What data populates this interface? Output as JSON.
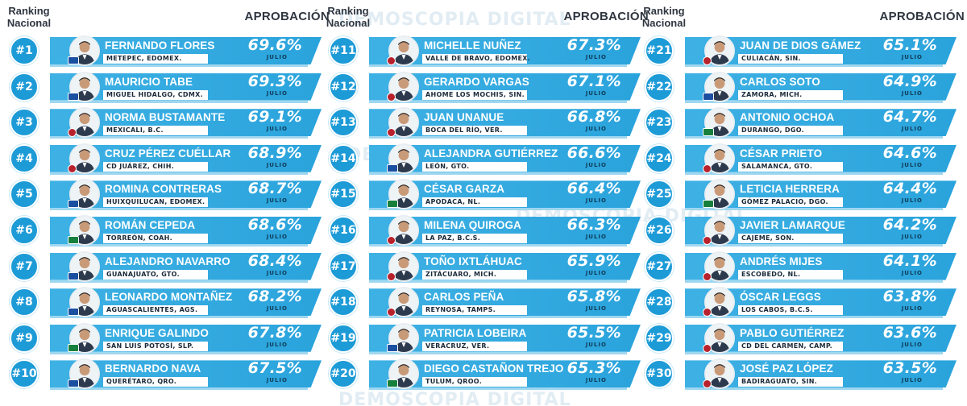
{
  "headers": {
    "ranking_line1": "Ranking",
    "ranking_line2": "Nacional",
    "approval": "APROBACIÓN"
  },
  "watermark": "DEMOSCOPIA DIGITAL",
  "colors": {
    "bar": "#2aa3dc",
    "rank_circle": "#1d9bd7",
    "header_text": "#2f3640"
  },
  "chart_data": {
    "type": "table",
    "columns": [
      "rank",
      "name",
      "city",
      "approval",
      "month"
    ],
    "unit": "%",
    "rows": [
      {
        "rank": "#1",
        "name": "FERNANDO FLORES",
        "city": "METEPEC, EDOMEX.",
        "approval": "69.6%",
        "value": 69.6,
        "month": "JULIO",
        "party": "blue"
      },
      {
        "rank": "#2",
        "name": "MAURICIO TABE",
        "city": "MIGUEL HIDALGO, CDMX.",
        "approval": "69.3%",
        "value": 69.3,
        "month": "JULIO",
        "party": "blue"
      },
      {
        "rank": "#3",
        "name": "NORMA BUSTAMANTE",
        "city": "MEXICALI, B.C.",
        "approval": "69.1%",
        "value": 69.1,
        "month": "JULIO",
        "party": "red"
      },
      {
        "rank": "#4",
        "name": "CRUZ PÉREZ CUÉLLAR",
        "city": "CD JUÁREZ, CHIH.",
        "approval": "68.9%",
        "value": 68.9,
        "month": "JULIO",
        "party": "red"
      },
      {
        "rank": "#5",
        "name": "ROMINA CONTRERAS",
        "city": "HUIXQUILUCAN, EDOMEX.",
        "approval": "68.7%",
        "value": 68.7,
        "month": "JULIO",
        "party": "blue"
      },
      {
        "rank": "#6",
        "name": "ROMÁN CEPEDA",
        "city": "TORREÓN, COAH.",
        "approval": "68.6%",
        "value": 68.6,
        "month": "JULIO",
        "party": "green"
      },
      {
        "rank": "#7",
        "name": "ALEJANDRO NAVARRO",
        "city": "GUANAJUATO, GTO.",
        "approval": "68.4%",
        "value": 68.4,
        "month": "JULIO",
        "party": "blue"
      },
      {
        "rank": "#8",
        "name": "LEONARDO MONTAÑEZ",
        "city": "AGUASCALIENTES, AGS.",
        "approval": "68.2%",
        "value": 68.2,
        "month": "JULIO",
        "party": "blue"
      },
      {
        "rank": "#9",
        "name": "ENRIQUE GALINDO",
        "city": "SAN LUIS POTOSÍ, SLP.",
        "approval": "67.8%",
        "value": 67.8,
        "month": "JULIO",
        "party": "green"
      },
      {
        "rank": "#10",
        "name": "BERNARDO NAVA",
        "city": "QUERÉTARO, QRO.",
        "approval": "67.5%",
        "value": 67.5,
        "month": "JULIO",
        "party": "blue"
      },
      {
        "rank": "#11",
        "name": "MICHELLE NUÑEZ",
        "city": "VALLE DE BRAVO, EDOMEX.",
        "approval": "67.3%",
        "value": 67.3,
        "month": "JULIO",
        "party": "red"
      },
      {
        "rank": "#12",
        "name": "GERARDO VARGAS",
        "city": "AHOME LOS MOCHIS, SIN.",
        "approval": "67.1%",
        "value": 67.1,
        "month": "JULIO",
        "party": "red"
      },
      {
        "rank": "#13",
        "name": "JUAN UNANUE",
        "city": "BOCA DEL RÍO, VER.",
        "approval": "66.8%",
        "value": 66.8,
        "month": "JULIO",
        "party": "red"
      },
      {
        "rank": "#14",
        "name": "ALEJANDRA GUTIÉRREZ",
        "city": "LEÓN, GTO.",
        "approval": "66.6%",
        "value": 66.6,
        "month": "JULIO",
        "party": "blue"
      },
      {
        "rank": "#15",
        "name": "CÉSAR GARZA",
        "city": "APODACA, NL.",
        "approval": "66.4%",
        "value": 66.4,
        "month": "JULIO",
        "party": "green"
      },
      {
        "rank": "#16",
        "name": "MILENA QUIROGA",
        "city": "LA PAZ, B.C.S.",
        "approval": "66.3%",
        "value": 66.3,
        "month": "JULIO",
        "party": "red"
      },
      {
        "rank": "#17",
        "name": "TOÑO IXTLÁHUAC",
        "city": "ZITÁCUARO, MICH.",
        "approval": "65.9%",
        "value": 65.9,
        "month": "JULIO",
        "party": "red"
      },
      {
        "rank": "#18",
        "name": "CARLOS PEÑA",
        "city": "REYNOSA, TAMPS.",
        "approval": "65.8%",
        "value": 65.8,
        "month": "JULIO",
        "party": "red"
      },
      {
        "rank": "#19",
        "name": "PATRICIA LOBEIRA",
        "city": "VERACRUZ, VER.",
        "approval": "65.5%",
        "value": 65.5,
        "month": "JULIO",
        "party": "blue"
      },
      {
        "rank": "#20",
        "name": "DIEGO CASTAÑON TREJO",
        "city": "TULUM, QROO.",
        "approval": "65.3%",
        "value": 65.3,
        "month": "JULIO",
        "party": "green"
      },
      {
        "rank": "#21",
        "name": "JUAN DE DIOS GÁMEZ",
        "city": "CULIACÁN, SIN.",
        "approval": "65.1%",
        "value": 65.1,
        "month": "JULIO",
        "party": "red"
      },
      {
        "rank": "#22",
        "name": "CARLOS SOTO",
        "city": "ZAMORA, MICH.",
        "approval": "64.9%",
        "value": 64.9,
        "month": "JULIO",
        "party": "blue"
      },
      {
        "rank": "#23",
        "name": "ANTONIO OCHOA",
        "city": "DURANGO, DGO.",
        "approval": "64.7%",
        "value": 64.7,
        "month": "JULIO",
        "party": "green"
      },
      {
        "rank": "#24",
        "name": "CÉSAR PRIETO",
        "city": "SALAMANCA, GTO.",
        "approval": "64.6%",
        "value": 64.6,
        "month": "JULIO",
        "party": "red"
      },
      {
        "rank": "#25",
        "name": "LETICIA HERRERA",
        "city": "GÓMEZ PALACIO, DGO.",
        "approval": "64.4%",
        "value": 64.4,
        "month": "JULIO",
        "party": "green"
      },
      {
        "rank": "#26",
        "name": "JAVIER LAMARQUE",
        "city": "CAJEME, SON.",
        "approval": "64.2%",
        "value": 64.2,
        "month": "JULIO",
        "party": "red"
      },
      {
        "rank": "#27",
        "name": "ANDRÉS MIJES",
        "city": "ESCOBEDO, NL.",
        "approval": "64.1%",
        "value": 64.1,
        "month": "JULIO",
        "party": "red"
      },
      {
        "rank": "#28",
        "name": "ÓSCAR LEGGS",
        "city": "LOS CABOS, B.C.S.",
        "approval": "63.8%",
        "value": 63.8,
        "month": "JULIO",
        "party": "red"
      },
      {
        "rank": "#29",
        "name": "PABLO GUTIÉRREZ",
        "city": "CD DEL CARMEN, CAMP.",
        "approval": "63.6%",
        "value": 63.6,
        "month": "JULIO",
        "party": "red"
      },
      {
        "rank": "#30",
        "name": "JOSÉ PAZ LÓPEZ",
        "city": "BADIRAGUATO, SIN.",
        "approval": "63.5%",
        "value": 63.5,
        "month": "JULIO",
        "party": "red"
      }
    ]
  }
}
